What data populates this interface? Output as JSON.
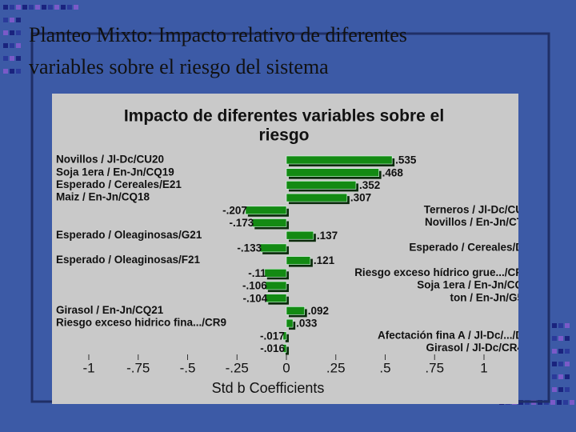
{
  "slide_title": [
    "Planteo Mixto: Impacto relativo de diferentes",
    "variables sobre el riesgo del sistema"
  ],
  "chart_data": {
    "type": "bar",
    "orientation": "horizontal",
    "title": [
      "Impacto de diferentes variables sobre el",
      "riesgo"
    ],
    "x_label": "Std b Coefficients",
    "categories": [
      "Novillos / Jl-Dc/CU20",
      "Soja 1era / En-Jn/CQ19",
      "Esperado / Cereales/E21",
      "Maiz / En-Jn/CQ18",
      "Terneros / Jl-Dc/CU",
      "Novillos / En-Jn/CT",
      "Esperado / Oleaginosas/G21",
      "Esperado / Cereales/D",
      "Esperado / Oleaginosas/F21",
      "Riesgo exceso hídrico grue.../CR",
      "Soja 1era / En-Jn/CQ",
      "ton / En-Jn/G5",
      "Girasol / En-Jn/CQ21",
      "Riesgo exceso hidrico fina.../CR9",
      "Afectación fina A / Jl-Dc/.../D",
      "Girasol / Jl-Dc/CR4"
    ],
    "values": [
      0.535,
      0.468,
      0.352,
      0.307,
      -0.207,
      -0.173,
      0.137,
      -0.133,
      0.121,
      -0.11,
      -0.106,
      -0.104,
      0.092,
      0.033,
      -0.017,
      -0.016
    ],
    "value_labels": [
      ".535",
      ".468",
      ".352",
      ".307",
      "-.207",
      "-.173",
      ".137",
      "-.133",
      ".121",
      "-.11",
      "-.106",
      "-.104",
      ".092",
      ".033",
      "-.017",
      "-.016"
    ],
    "color": "#138a13",
    "xlim": [
      -1.1,
      1.17
    ],
    "xticks": [
      -1,
      {
        "value": -0.75,
        "label": "-.75"
      },
      {
        "value": -0.5,
        "label": "-.5"
      },
      {
        "value": -0.25,
        "label": "-.25"
      },
      0,
      {
        "value": 0.25,
        "label": ".25"
      },
      {
        "value": 0.5,
        "label": ".5"
      },
      {
        "value": 0.75,
        "label": ".75"
      },
      1
    ]
  }
}
